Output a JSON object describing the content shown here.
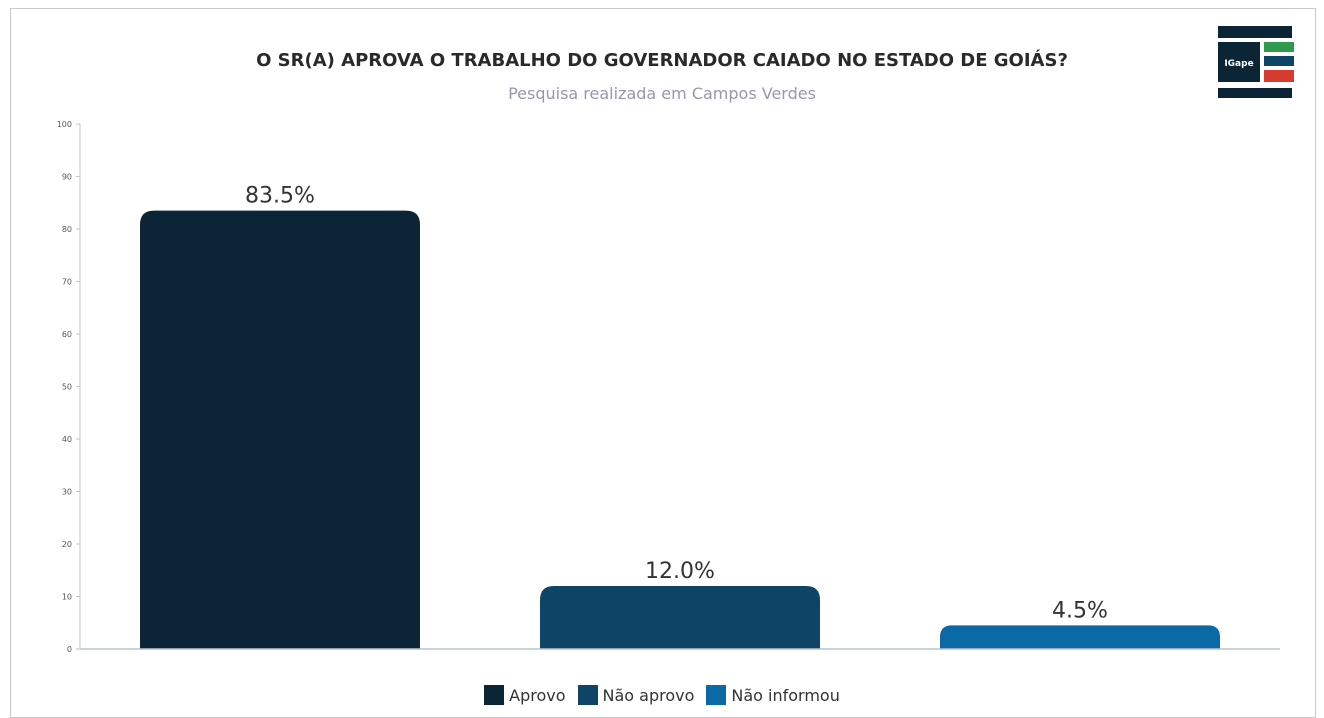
{
  "colors": {
    "aprovo": "#0b2436",
    "nao_aprovo": "#0e4465",
    "nao_informou": "#0b6aa6",
    "axis": "#b9c5cc",
    "label": "#333333",
    "logo_dark": "#0b2436",
    "logo_green": "#2e9a4e",
    "logo_red": "#d63b2f",
    "logo_teal": "#0e4465"
  },
  "logo": {
    "text": "IGape",
    "icon": "igape-logo-icon"
  },
  "chart_data": {
    "type": "bar",
    "title": "O SR(A) APROVA O TRABALHO DO GOVERNADOR CAIADO NO ESTADO DE GOIÁS?",
    "subtitle": "Pesquisa realizada em Campos Verdes",
    "categories": [
      "Aprovo",
      "Não aprovo",
      "Não informou"
    ],
    "values": [
      83.5,
      12.0,
      4.5
    ],
    "value_labels": [
      "83.5%",
      "12.0%",
      "4.5%"
    ],
    "ylim": [
      0,
      100
    ],
    "yticks": [
      "0",
      "10",
      "20",
      "30",
      "40",
      "50",
      "60",
      "70",
      "80",
      "90",
      "100"
    ],
    "xlabel": "",
    "ylabel": "",
    "grid": false,
    "legend_position": "bottom"
  }
}
